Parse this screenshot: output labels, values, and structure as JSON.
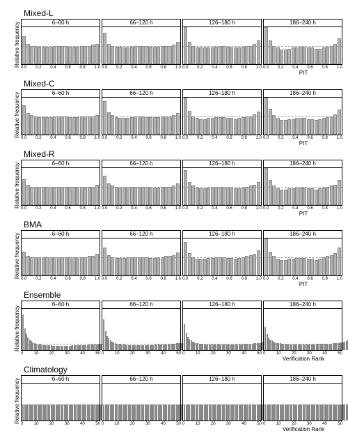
{
  "panel_titles": [
    "6–60 h",
    "66–120 h",
    "126–180 h",
    "186–240 h"
  ],
  "ylab": "Relative frequency",
  "xlab_pit": "PIT",
  "xlab_rank": "Verification Rank",
  "pit_ticks": [
    "0.0",
    "0.2",
    "0.4",
    "0.6",
    "0.8",
    "1.0"
  ],
  "rank_ticks": [
    "0",
    "10",
    "20",
    "30",
    "40",
    "50"
  ],
  "colors": {
    "bar": "#b3b3b3",
    "bar_border": "#888888",
    "ref": "#999999"
  },
  "groups": [
    {
      "name": "Mixed-L",
      "axis": "pit",
      "ymax": 0.1,
      "ref": 0.05,
      "nbins": 20,
      "panels": [
        [
          0.075,
          0.055,
          0.05,
          0.05,
          0.048,
          0.048,
          0.048,
          0.048,
          0.05,
          0.05,
          0.05,
          0.05,
          0.048,
          0.048,
          0.048,
          0.05,
          0.05,
          0.05,
          0.052,
          0.055
        ],
        [
          0.085,
          0.055,
          0.05,
          0.048,
          0.048,
          0.045,
          0.045,
          0.048,
          0.05,
          0.05,
          0.05,
          0.05,
          0.048,
          0.048,
          0.048,
          0.05,
          0.05,
          0.05,
          0.052,
          0.06
        ],
        [
          0.1,
          0.06,
          0.05,
          0.045,
          0.045,
          0.045,
          0.045,
          0.045,
          0.048,
          0.05,
          0.05,
          0.048,
          0.045,
          0.045,
          0.045,
          0.048,
          0.05,
          0.05,
          0.055,
          0.065
        ],
        [
          0.11,
          0.065,
          0.05,
          0.045,
          0.04,
          0.04,
          0.042,
          0.045,
          0.045,
          0.048,
          0.048,
          0.045,
          0.045,
          0.042,
          0.042,
          0.045,
          0.048,
          0.05,
          0.055,
          0.07
        ]
      ]
    },
    {
      "name": "Mixed-C",
      "axis": "pit",
      "ymax": 0.1,
      "ref": 0.05,
      "nbins": 20,
      "panels": [
        [
          0.08,
          0.058,
          0.052,
          0.05,
          0.048,
          0.048,
          0.048,
          0.048,
          0.05,
          0.05,
          0.05,
          0.05,
          0.048,
          0.048,
          0.048,
          0.05,
          0.05,
          0.05,
          0.05,
          0.053
        ],
        [
          0.09,
          0.06,
          0.052,
          0.048,
          0.045,
          0.045,
          0.045,
          0.048,
          0.05,
          0.05,
          0.05,
          0.048,
          0.048,
          0.048,
          0.048,
          0.05,
          0.05,
          0.05,
          0.052,
          0.058
        ],
        [
          0.105,
          0.065,
          0.05,
          0.045,
          0.042,
          0.042,
          0.045,
          0.045,
          0.048,
          0.048,
          0.048,
          0.045,
          0.045,
          0.042,
          0.045,
          0.048,
          0.05,
          0.05,
          0.055,
          0.062
        ],
        [
          0.115,
          0.07,
          0.052,
          0.045,
          0.04,
          0.04,
          0.042,
          0.042,
          0.045,
          0.045,
          0.045,
          0.042,
          0.042,
          0.04,
          0.042,
          0.045,
          0.048,
          0.05,
          0.055,
          0.068
        ]
      ]
    },
    {
      "name": "Mixed-R",
      "axis": "pit",
      "ymax": 0.1,
      "ref": 0.05,
      "nbins": 20,
      "panels": [
        [
          0.07,
          0.055,
          0.05,
          0.05,
          0.05,
          0.05,
          0.05,
          0.05,
          0.05,
          0.05,
          0.05,
          0.05,
          0.05,
          0.05,
          0.05,
          0.05,
          0.05,
          0.05,
          0.05,
          0.055
        ],
        [
          0.08,
          0.058,
          0.052,
          0.05,
          0.048,
          0.048,
          0.05,
          0.05,
          0.05,
          0.05,
          0.05,
          0.05,
          0.05,
          0.048,
          0.048,
          0.05,
          0.05,
          0.05,
          0.052,
          0.058
        ],
        [
          0.095,
          0.062,
          0.052,
          0.048,
          0.045,
          0.045,
          0.048,
          0.048,
          0.05,
          0.05,
          0.05,
          0.048,
          0.048,
          0.045,
          0.045,
          0.048,
          0.05,
          0.052,
          0.055,
          0.062
        ],
        [
          0.105,
          0.068,
          0.052,
          0.045,
          0.042,
          0.042,
          0.045,
          0.045,
          0.048,
          0.048,
          0.048,
          0.045,
          0.045,
          0.042,
          0.045,
          0.048,
          0.05,
          0.052,
          0.055,
          0.068
        ]
      ]
    },
    {
      "name": "BMA",
      "axis": "pit",
      "ymax": 0.1,
      "ref": 0.05,
      "nbins": 20,
      "panels": [
        [
          0.065,
          0.052,
          0.05,
          0.05,
          0.05,
          0.05,
          0.05,
          0.05,
          0.05,
          0.05,
          0.05,
          0.05,
          0.05,
          0.05,
          0.05,
          0.05,
          0.05,
          0.052,
          0.053,
          0.058
        ],
        [
          0.075,
          0.055,
          0.05,
          0.048,
          0.048,
          0.048,
          0.05,
          0.05,
          0.05,
          0.05,
          0.05,
          0.05,
          0.048,
          0.048,
          0.05,
          0.05,
          0.052,
          0.052,
          0.055,
          0.062
        ],
        [
          0.09,
          0.06,
          0.05,
          0.045,
          0.045,
          0.045,
          0.048,
          0.048,
          0.05,
          0.05,
          0.05,
          0.048,
          0.048,
          0.045,
          0.048,
          0.05,
          0.052,
          0.055,
          0.058,
          0.068
        ],
        [
          0.1,
          0.065,
          0.052,
          0.045,
          0.042,
          0.042,
          0.045,
          0.045,
          0.048,
          0.048,
          0.048,
          0.045,
          0.045,
          0.042,
          0.045,
          0.05,
          0.052,
          0.055,
          0.06,
          0.075
        ]
      ]
    },
    {
      "name": "Ensemble",
      "axis": "rank",
      "ymax": 0.13,
      "ref": 0.0196,
      "nbins": 51,
      "tall": true,
      "panels": [
        [
          0.112,
          0.068,
          0.05,
          0.04,
          0.032,
          0.028,
          0.024,
          0.022,
          0.02,
          0.018,
          0.018,
          0.017,
          0.016,
          0.016,
          0.015,
          0.015,
          0.015,
          0.015,
          0.014,
          0.014,
          0.014,
          0.014,
          0.014,
          0.014,
          0.014,
          0.014,
          0.014,
          0.014,
          0.014,
          0.014,
          0.015,
          0.015,
          0.015,
          0.015,
          0.015,
          0.015,
          0.016,
          0.016,
          0.016,
          0.016,
          0.017,
          0.017,
          0.017,
          0.018,
          0.018,
          0.018,
          0.019,
          0.02,
          0.02,
          0.021,
          0.022
        ],
        [
          0.098,
          0.06,
          0.045,
          0.037,
          0.03,
          0.027,
          0.024,
          0.022,
          0.02,
          0.019,
          0.018,
          0.018,
          0.017,
          0.017,
          0.016,
          0.016,
          0.016,
          0.016,
          0.016,
          0.016,
          0.016,
          0.016,
          0.016,
          0.016,
          0.016,
          0.016,
          0.016,
          0.016,
          0.016,
          0.016,
          0.016,
          0.017,
          0.017,
          0.017,
          0.017,
          0.018,
          0.018,
          0.018,
          0.018,
          0.019,
          0.019,
          0.019,
          0.02,
          0.02,
          0.021,
          0.021,
          0.022,
          0.023,
          0.024,
          0.025,
          0.027
        ],
        [
          0.082,
          0.055,
          0.042,
          0.035,
          0.03,
          0.027,
          0.024,
          0.022,
          0.021,
          0.02,
          0.019,
          0.019,
          0.018,
          0.018,
          0.017,
          0.017,
          0.017,
          0.017,
          0.017,
          0.017,
          0.017,
          0.017,
          0.017,
          0.017,
          0.017,
          0.017,
          0.017,
          0.017,
          0.017,
          0.017,
          0.018,
          0.018,
          0.018,
          0.018,
          0.018,
          0.019,
          0.019,
          0.019,
          0.019,
          0.02,
          0.02,
          0.02,
          0.021,
          0.021,
          0.022,
          0.022,
          0.023,
          0.024,
          0.025,
          0.026,
          0.029
        ],
        [
          0.072,
          0.05,
          0.04,
          0.034,
          0.03,
          0.027,
          0.025,
          0.023,
          0.022,
          0.021,
          0.02,
          0.02,
          0.019,
          0.019,
          0.018,
          0.018,
          0.018,
          0.018,
          0.018,
          0.018,
          0.018,
          0.018,
          0.018,
          0.018,
          0.018,
          0.018,
          0.018,
          0.018,
          0.018,
          0.018,
          0.018,
          0.018,
          0.019,
          0.019,
          0.019,
          0.019,
          0.019,
          0.02,
          0.02,
          0.02,
          0.02,
          0.021,
          0.021,
          0.022,
          0.022,
          0.023,
          0.024,
          0.025,
          0.026,
          0.028,
          0.032
        ]
      ]
    },
    {
      "name": "Climatology",
      "axis": "rank",
      "ymax": 0.045,
      "ref": 0.0196,
      "nbins": 51,
      "panels": [
        [
          0.0196,
          0.0196,
          0.0196,
          0.0196,
          0.0196,
          0.0196,
          0.0196,
          0.0196,
          0.0196,
          0.0196,
          0.0196,
          0.0196,
          0.0196,
          0.0196,
          0.0196,
          0.0196,
          0.0196,
          0.0196,
          0.0196,
          0.0196,
          0.0196,
          0.0196,
          0.0196,
          0.0196,
          0.0196,
          0.0196,
          0.0196,
          0.0196,
          0.0196,
          0.0196,
          0.0196,
          0.0196,
          0.0196,
          0.0196,
          0.0196,
          0.0196,
          0.0196,
          0.0196,
          0.0196,
          0.0196,
          0.0196,
          0.0196,
          0.0196,
          0.0196,
          0.0196,
          0.0196,
          0.0196,
          0.0196,
          0.0196,
          0.0196,
          0.0196
        ],
        [
          0.0196,
          0.0196,
          0.0196,
          0.0196,
          0.0196,
          0.0196,
          0.0196,
          0.0196,
          0.0196,
          0.0196,
          0.0196,
          0.0196,
          0.0196,
          0.0196,
          0.0196,
          0.0196,
          0.0196,
          0.0196,
          0.0196,
          0.0196,
          0.0196,
          0.0196,
          0.0196,
          0.0196,
          0.0196,
          0.0196,
          0.0196,
          0.0196,
          0.0196,
          0.0196,
          0.0196,
          0.0196,
          0.0196,
          0.0196,
          0.0196,
          0.0196,
          0.0196,
          0.0196,
          0.0196,
          0.0196,
          0.0196,
          0.0196,
          0.0196,
          0.0196,
          0.0196,
          0.0196,
          0.0196,
          0.0196,
          0.0196,
          0.0196,
          0.0196
        ],
        [
          0.0196,
          0.0196,
          0.0196,
          0.0196,
          0.0196,
          0.0196,
          0.0196,
          0.0196,
          0.0196,
          0.0196,
          0.0196,
          0.0196,
          0.0196,
          0.0196,
          0.0196,
          0.0196,
          0.0196,
          0.0196,
          0.0196,
          0.0196,
          0.0196,
          0.0196,
          0.0196,
          0.0196,
          0.0196,
          0.0196,
          0.0196,
          0.0196,
          0.0196,
          0.0196,
          0.0196,
          0.0196,
          0.0196,
          0.0196,
          0.0196,
          0.0196,
          0.0196,
          0.0196,
          0.0196,
          0.0196,
          0.0196,
          0.0196,
          0.0196,
          0.0196,
          0.0196,
          0.0196,
          0.0196,
          0.0196,
          0.0196,
          0.0196,
          0.0196
        ],
        [
          0.0196,
          0.0196,
          0.0196,
          0.0196,
          0.0196,
          0.0196,
          0.0196,
          0.0196,
          0.0196,
          0.0196,
          0.0196,
          0.0196,
          0.0196,
          0.0196,
          0.0196,
          0.0196,
          0.0196,
          0.0196,
          0.0196,
          0.0196,
          0.0196,
          0.0196,
          0.0196,
          0.0196,
          0.0196,
          0.0196,
          0.0196,
          0.0196,
          0.0196,
          0.0196,
          0.0196,
          0.0196,
          0.0196,
          0.0196,
          0.0196,
          0.0196,
          0.0196,
          0.0196,
          0.0196,
          0.0196,
          0.0196,
          0.0196,
          0.0196,
          0.0196,
          0.0196,
          0.0196,
          0.0196,
          0.0196,
          0.0196,
          0.0196,
          0.0196
        ]
      ]
    }
  ]
}
